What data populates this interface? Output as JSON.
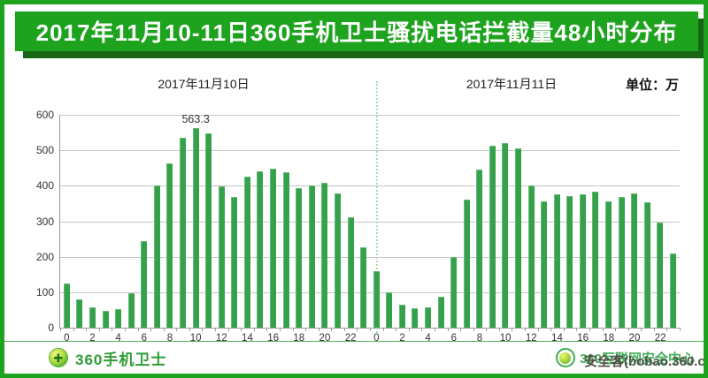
{
  "banner": {
    "title": "2017年11月10-11日360手机卫士骚扰电话拦截量48小时分布"
  },
  "chart_data": {
    "type": "bar",
    "title": "2017年11月10-11日360手机卫士骚扰电话拦截量48小时分布",
    "unit_label": "单位：万",
    "ylabel": "",
    "xlabel": "",
    "ylim": [
      0,
      600
    ],
    "yticks": [
      "600",
      "500",
      "400",
      "300",
      "200",
      "100",
      "0"
    ],
    "xtick_labels_per_day": [
      "0",
      "2",
      "4",
      "6",
      "8",
      "10",
      "12",
      "14",
      "16",
      "18",
      "20",
      "22"
    ],
    "grid": true,
    "divider_between_days": true,
    "series": [
      {
        "name": "2017年11月10日",
        "values": [
          125,
          79,
          58,
          48,
          53,
          98,
          244,
          400,
          462,
          535,
          563.3,
          548,
          399,
          368,
          427,
          440,
          449,
          438,
          394,
          400,
          409,
          379,
          310,
          226
        ]
      },
      {
        "name": "2017年11月11日",
        "values": [
          160,
          100,
          65,
          55,
          57,
          87,
          200,
          360,
          445,
          513,
          520,
          505,
          402,
          355,
          376,
          370,
          376,
          383,
          357,
          368,
          378,
          353,
          297,
          210
        ]
      }
    ],
    "annotation": {
      "series_index": 0,
      "hour_index": 10,
      "text": "563.3"
    }
  },
  "colors": {
    "accent_green": "#1ea31e",
    "banner_shadow": "#166616",
    "bar": "#35a24b",
    "divider": "#a5dcb5",
    "footer_brand": "#2f9d38",
    "watermark_dark": "#4d4f48"
  },
  "footer": {
    "brand": "360手机卫士",
    "brand_logo": "360-shield-ball-logo",
    "watermark_green": "360互联网安全中心",
    "watermark_dark": "安全客(bobao.360.cn)"
  }
}
